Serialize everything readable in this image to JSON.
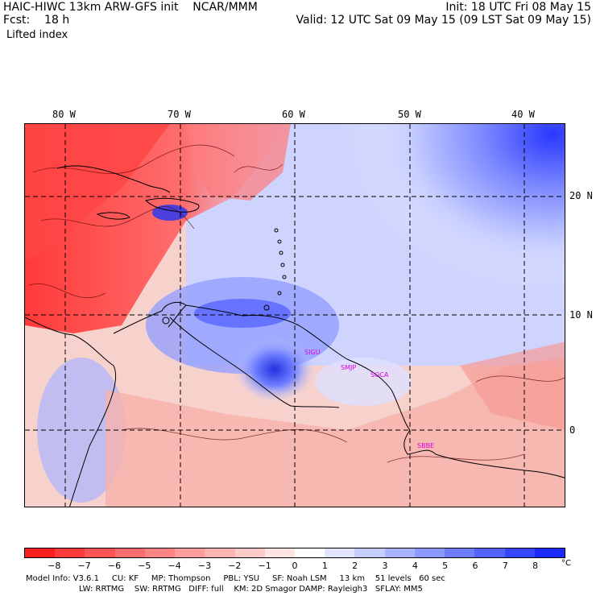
{
  "header": {
    "line1": "HAIC-HIWC 13km ARW-GFS init    NCAR/MMM",
    "line2": "Fcst:    18 h",
    "field": "Lifted index",
    "init": "Init: 18 UTC Fri 08 May 15",
    "valid": "Valid: 12 UTC Sat 09 May 15 (09 LST Sat 09 May 15)"
  },
  "map": {
    "lon_labels": [
      "80 W",
      "70 W",
      "60 W",
      "50 W",
      "40 W"
    ],
    "lat_labels": [
      "20 N",
      "10 N",
      "0"
    ],
    "place_labels": [
      "SIGU",
      "SMJP",
      "SOCA",
      "SBBE"
    ]
  },
  "colorbar": {
    "ticks": [
      "−8",
      "−7",
      "−6",
      "−5",
      "−4",
      "−3",
      "−2",
      "−1",
      "0",
      "1",
      "2",
      "3",
      "4",
      "5",
      "6",
      "7",
      "8"
    ],
    "unit": "°C",
    "colors": [
      "#ff1f1f",
      "#ff3a3a",
      "#ff5555",
      "#ff6e6e",
      "#ff8585",
      "#ff9d9d",
      "#ffb4b4",
      "#ffcaca",
      "#ffe4e4",
      "#ffffff",
      "#e0e4ff",
      "#c6cdff",
      "#a9b3ff",
      "#8c99ff",
      "#6e7dff",
      "#5262ff",
      "#3646ff",
      "#1a2aff"
    ]
  },
  "footer": {
    "line1": "Model Info: V3.6.1     CU: KF     MP: Thompson     PBL: YSU     SF: Noah LSM     13 km    51 levels   60 sec",
    "line2": "LW: RRTMG    SW: RRTMG   DIFF: full    KM: 2D Smagor DAMP: Rayleigh3   SFLAY: MM5"
  }
}
